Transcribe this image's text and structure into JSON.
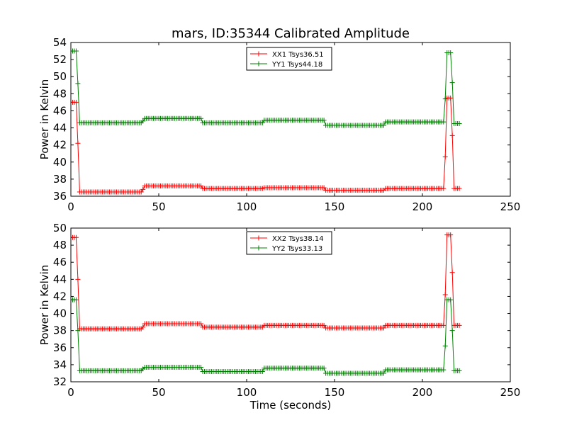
{
  "figure": {
    "title": "mars, ID:35344 Calibrated Amplitude",
    "xlabel": "Time (seconds)"
  },
  "chart_data": [
    {
      "type": "line",
      "ylabel": "Power in Kelvin",
      "xlim": [
        0,
        250
      ],
      "ylim": [
        36,
        54
      ],
      "xticks": [
        0,
        50,
        100,
        150,
        200,
        250
      ],
      "yticks": [
        36,
        38,
        40,
        42,
        44,
        46,
        48,
        50,
        52,
        54
      ],
      "grid": false,
      "legend": "upper-center",
      "series": [
        {
          "name": "XX1 Tsys36.51",
          "color": "#ff0000",
          "marker": "+",
          "segments": [
            {
              "x0": 0,
              "x1": 3,
              "step": 1,
              "y": 47.0
            },
            {
              "x0": 4,
              "x1": 4,
              "step": 1,
              "y": 42.2
            },
            {
              "x0": 5,
              "x1": 40,
              "step": 1,
              "y": 36.5
            },
            {
              "x0": 41,
              "x1": 41,
              "step": 1,
              "y": 36.8
            },
            {
              "x0": 42,
              "x1": 74,
              "step": 1,
              "y": 37.2
            },
            {
              "x0": 75,
              "x1": 109,
              "step": 1,
              "y": 36.9
            },
            {
              "x0": 110,
              "x1": 144,
              "step": 1,
              "y": 37.0
            },
            {
              "x0": 145,
              "x1": 178,
              "step": 1,
              "y": 36.7
            },
            {
              "x0": 179,
              "x1": 212,
              "step": 1,
              "y": 36.9
            },
            {
              "x0": 213,
              "x1": 213,
              "step": 1,
              "y": 40.6
            },
            {
              "x0": 214,
              "x1": 216,
              "step": 1,
              "y": 47.5
            },
            {
              "x0": 217,
              "x1": 217,
              "step": 1,
              "y": 43.1
            },
            {
              "x0": 218,
              "x1": 221,
              "step": 1,
              "y": 36.9
            }
          ]
        },
        {
          "name": "YY1 Tsys44.18",
          "color": "#008000",
          "marker": "+",
          "segments": [
            {
              "x0": 0,
              "x1": 3,
              "step": 1,
              "y": 53.0
            },
            {
              "x0": 4,
              "x1": 4,
              "step": 1,
              "y": 49.2
            },
            {
              "x0": 5,
              "x1": 40,
              "step": 1,
              "y": 44.6
            },
            {
              "x0": 41,
              "x1": 41,
              "step": 1,
              "y": 44.8
            },
            {
              "x0": 42,
              "x1": 74,
              "step": 1,
              "y": 45.1
            },
            {
              "x0": 75,
              "x1": 109,
              "step": 1,
              "y": 44.6
            },
            {
              "x0": 110,
              "x1": 144,
              "step": 1,
              "y": 44.9
            },
            {
              "x0": 145,
              "x1": 178,
              "step": 1,
              "y": 44.3
            },
            {
              "x0": 179,
              "x1": 212,
              "step": 1,
              "y": 44.7
            },
            {
              "x0": 213,
              "x1": 213,
              "step": 1,
              "y": 47.4
            },
            {
              "x0": 214,
              "x1": 216,
              "step": 1,
              "y": 52.8
            },
            {
              "x0": 217,
              "x1": 217,
              "step": 1,
              "y": 49.3
            },
            {
              "x0": 218,
              "x1": 221,
              "step": 1,
              "y": 44.5
            }
          ]
        }
      ]
    },
    {
      "type": "line",
      "ylabel": "Power in Kelvin",
      "xlim": [
        0,
        250
      ],
      "ylim": [
        32,
        50
      ],
      "xticks": [
        0,
        50,
        100,
        150,
        200,
        250
      ],
      "yticks": [
        32,
        34,
        36,
        38,
        40,
        42,
        44,
        46,
        48,
        50
      ],
      "grid": false,
      "legend": "upper-center",
      "series": [
        {
          "name": "XX2 Tsys38.14",
          "color": "#ff0000",
          "marker": "+",
          "segments": [
            {
              "x0": 0,
              "x1": 3,
              "step": 1,
              "y": 48.9
            },
            {
              "x0": 4,
              "x1": 4,
              "step": 1,
              "y": 44.0
            },
            {
              "x0": 5,
              "x1": 40,
              "step": 1,
              "y": 38.2
            },
            {
              "x0": 41,
              "x1": 41,
              "step": 1,
              "y": 38.4
            },
            {
              "x0": 42,
              "x1": 74,
              "step": 1,
              "y": 38.8
            },
            {
              "x0": 75,
              "x1": 109,
              "step": 1,
              "y": 38.4
            },
            {
              "x0": 110,
              "x1": 144,
              "step": 1,
              "y": 38.6
            },
            {
              "x0": 145,
              "x1": 178,
              "step": 1,
              "y": 38.3
            },
            {
              "x0": 179,
              "x1": 212,
              "step": 1,
              "y": 38.6
            },
            {
              "x0": 213,
              "x1": 213,
              "step": 1,
              "y": 42.2
            },
            {
              "x0": 214,
              "x1": 216,
              "step": 1,
              "y": 49.2
            },
            {
              "x0": 217,
              "x1": 217,
              "step": 1,
              "y": 44.8
            },
            {
              "x0": 218,
              "x1": 221,
              "step": 1,
              "y": 38.6
            }
          ]
        },
        {
          "name": "YY2 Tsys33.13",
          "color": "#008000",
          "marker": "+",
          "segments": [
            {
              "x0": 0,
              "x1": 3,
              "step": 1,
              "y": 41.6
            },
            {
              "x0": 4,
              "x1": 4,
              "step": 1,
              "y": 38.0
            },
            {
              "x0": 5,
              "x1": 40,
              "step": 1,
              "y": 33.3
            },
            {
              "x0": 41,
              "x1": 41,
              "step": 1,
              "y": 33.5
            },
            {
              "x0": 42,
              "x1": 74,
              "step": 1,
              "y": 33.7
            },
            {
              "x0": 75,
              "x1": 109,
              "step": 1,
              "y": 33.2
            },
            {
              "x0": 110,
              "x1": 144,
              "step": 1,
              "y": 33.6
            },
            {
              "x0": 145,
              "x1": 178,
              "step": 1,
              "y": 33.0
            },
            {
              "x0": 179,
              "x1": 212,
              "step": 1,
              "y": 33.4
            },
            {
              "x0": 213,
              "x1": 213,
              "step": 1,
              "y": 36.2
            },
            {
              "x0": 214,
              "x1": 216,
              "step": 1,
              "y": 41.6
            },
            {
              "x0": 217,
              "x1": 217,
              "step": 1,
              "y": 38.0
            },
            {
              "x0": 218,
              "x1": 221,
              "step": 1,
              "y": 33.3
            }
          ]
        }
      ]
    }
  ]
}
